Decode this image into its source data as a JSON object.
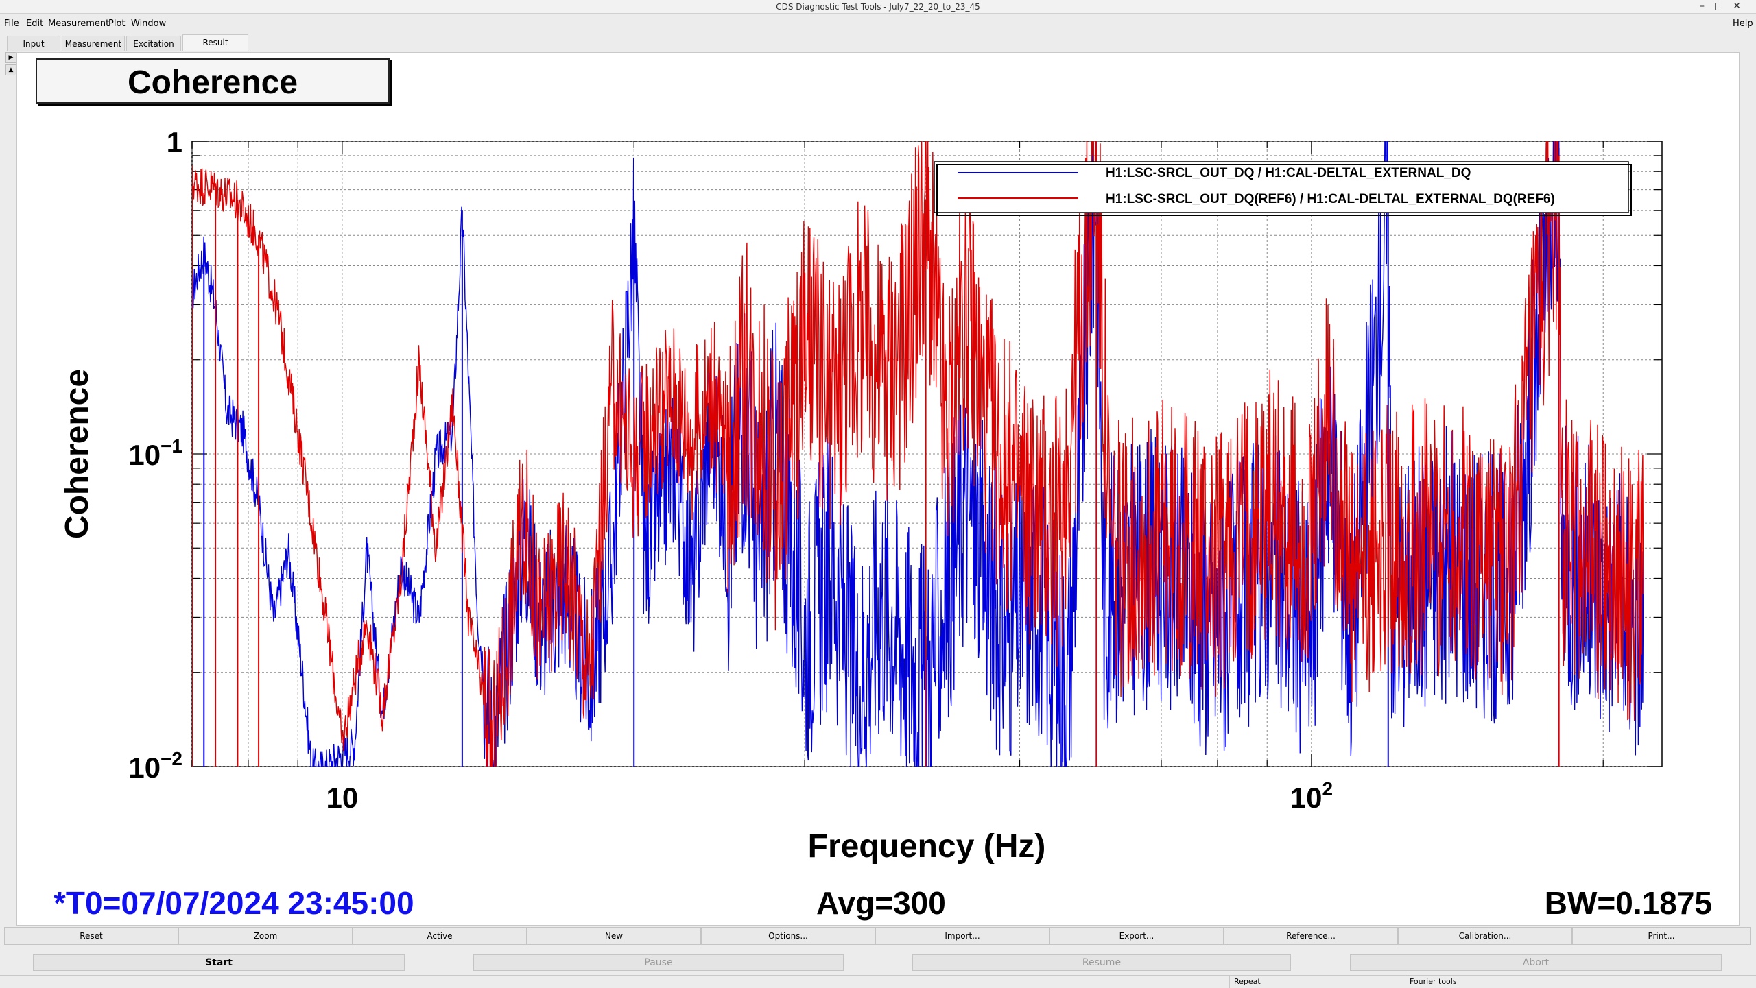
{
  "window": {
    "title": "CDS Diagnostic Test Tools - July7_22_20_to_23_45",
    "controls": [
      "–",
      "□",
      "✕"
    ]
  },
  "menu": {
    "items": [
      "File",
      "Edit",
      "Measurement",
      "Plot",
      "Window"
    ],
    "help": "Help"
  },
  "tabs": [
    "Input",
    "Measurement",
    "Excitation",
    "Result"
  ],
  "active_tab": "Result",
  "plot": {
    "title": "Coherence"
  },
  "chart_data": {
    "type": "line",
    "title": "Coherence",
    "xlabel": "Frequency (Hz)",
    "ylabel": "Coherence",
    "x_scale": "log",
    "y_scale": "log",
    "xlim": [
      7,
      230
    ],
    "ylim": [
      0.01,
      1
    ],
    "x_ticks": [
      {
        "value": 10,
        "label": "10",
        "sup": ""
      },
      {
        "value": 100,
        "label": "10",
        "sup": "2"
      }
    ],
    "y_ticks": [
      {
        "value": 1,
        "label": "1",
        "sup": ""
      },
      {
        "value": 0.1,
        "label": "10",
        "sup": "−1"
      },
      {
        "value": 0.01,
        "label": "10",
        "sup": "−2"
      }
    ],
    "grid": true,
    "legend_position": "top-right",
    "series": [
      {
        "name": "H1:LSC-SRCL_OUT_DQ / H1:CAL-DELTAL_EXTERNAL_DQ",
        "color": "#0000dd",
        "points": [
          [
            7.0,
            0.33
          ],
          [
            7.2,
            0.45
          ],
          [
            7.4,
            0.3
          ],
          [
            7.6,
            0.14
          ],
          [
            7.9,
            0.12
          ],
          [
            8.2,
            0.07
          ],
          [
            8.5,
            0.03
          ],
          [
            8.8,
            0.05
          ],
          [
            9.1,
            0.02
          ],
          [
            9.3,
            0.01
          ],
          [
            9.6,
            0.01
          ],
          [
            10.3,
            0.012
          ],
          [
            10.6,
            0.05
          ],
          [
            11.0,
            0.015
          ],
          [
            11.5,
            0.045
          ],
          [
            12.0,
            0.03
          ],
          [
            12.5,
            0.1
          ],
          [
            13.0,
            0.12
          ],
          [
            13.3,
            0.6
          ],
          [
            13.8,
            0.03
          ],
          [
            14.3,
            0.012
          ],
          [
            15.4,
            0.06
          ],
          [
            16.0,
            0.03
          ],
          [
            17.0,
            0.04
          ],
          [
            18.0,
            0.02
          ],
          [
            19.0,
            0.05
          ],
          [
            20.0,
            0.55
          ],
          [
            20.5,
            0.05
          ],
          [
            22.0,
            0.1
          ],
          [
            23.0,
            0.04
          ],
          [
            24.0,
            0.14
          ],
          [
            25.0,
            0.06
          ],
          [
            26.0,
            0.16
          ],
          [
            27.0,
            0.05
          ],
          [
            28.0,
            0.12
          ],
          [
            30.0,
            0.03
          ],
          [
            32.0,
            0.05
          ],
          [
            34.0,
            0.02
          ],
          [
            36.0,
            0.04
          ],
          [
            40.0,
            0.02
          ],
          [
            44.0,
            0.08
          ],
          [
            48.0,
            0.03
          ],
          [
            52.0,
            0.04
          ],
          [
            56.0,
            0.02
          ],
          [
            60.0,
            1.0
          ],
          [
            61.0,
            0.04
          ],
          [
            70.0,
            0.05
          ],
          [
            80.0,
            0.03
          ],
          [
            90.0,
            0.05
          ],
          [
            100.0,
            0.03
          ],
          [
            104.0,
            0.12
          ],
          [
            110.0,
            0.03
          ],
          [
            120.0,
            0.7
          ],
          [
            121.0,
            0.04
          ],
          [
            140.0,
            0.05
          ],
          [
            160.0,
            0.04
          ],
          [
            180.0,
            0.95
          ],
          [
            181.0,
            0.05
          ],
          [
            200.0,
            0.04
          ],
          [
            220.0,
            0.03
          ]
        ]
      },
      {
        "name": "H1:LSC-SRCL_OUT_DQ(REF6) / H1:CAL-DELTAL_EXTERNAL_DQ(REF6)",
        "color": "#dd0000",
        "points": [
          [
            7.0,
            0.75
          ],
          [
            7.4,
            0.72
          ],
          [
            7.8,
            0.65
          ],
          [
            8.2,
            0.5
          ],
          [
            8.6,
            0.28
          ],
          [
            9.0,
            0.12
          ],
          [
            9.4,
            0.05
          ],
          [
            9.7,
            0.025
          ],
          [
            10.0,
            0.012
          ],
          [
            10.6,
            0.03
          ],
          [
            11.0,
            0.015
          ],
          [
            11.5,
            0.04
          ],
          [
            12.0,
            0.2
          ],
          [
            12.5,
            0.05
          ],
          [
            13.0,
            0.15
          ],
          [
            13.5,
            0.03
          ],
          [
            14.3,
            0.012
          ],
          [
            15.4,
            0.07
          ],
          [
            16.0,
            0.03
          ],
          [
            17.0,
            0.05
          ],
          [
            18.0,
            0.02
          ],
          [
            19.0,
            0.18
          ],
          [
            20.0,
            0.1
          ],
          [
            21.0,
            0.14
          ],
          [
            22.0,
            0.16
          ],
          [
            23.0,
            0.12
          ],
          [
            24.0,
            0.17
          ],
          [
            25.0,
            0.1
          ],
          [
            26.0,
            0.2
          ],
          [
            27.0,
            0.15
          ],
          [
            28.0,
            0.08
          ],
          [
            30.0,
            0.25
          ],
          [
            32.0,
            0.15
          ],
          [
            34.0,
            0.28
          ],
          [
            36.0,
            0.2
          ],
          [
            38.0,
            0.25
          ],
          [
            40.0,
            0.65
          ],
          [
            42.0,
            0.12
          ],
          [
            44.0,
            0.35
          ],
          [
            46.0,
            0.15
          ],
          [
            48.0,
            0.1
          ],
          [
            50.0,
            0.08
          ],
          [
            55.0,
            0.06
          ],
          [
            60.0,
            0.95
          ],
          [
            62.0,
            0.05
          ],
          [
            70.0,
            0.06
          ],
          [
            80.0,
            0.05
          ],
          [
            90.0,
            0.08
          ],
          [
            100.0,
            0.05
          ],
          [
            104.0,
            0.15
          ],
          [
            110.0,
            0.04
          ],
          [
            120.0,
            0.06
          ],
          [
            140.0,
            0.06
          ],
          [
            160.0,
            0.05
          ],
          [
            180.0,
            0.9
          ],
          [
            182.0,
            0.06
          ],
          [
            200.0,
            0.05
          ],
          [
            220.0,
            0.04
          ]
        ]
      }
    ]
  },
  "stats": {
    "t0": "*T0=07/07/2024 23:45:00",
    "avg": "Avg=300",
    "bw": "BW=0.1875"
  },
  "toolbar": [
    "Reset",
    "Zoom",
    "Active",
    "New",
    "Options...",
    "Import...",
    "Export...",
    "Reference...",
    "Calibration...",
    "Print..."
  ],
  "run_controls": [
    {
      "label": "Start",
      "enabled": true
    },
    {
      "label": "Pause",
      "enabled": false
    },
    {
      "label": "Resume",
      "enabled": false
    },
    {
      "label": "Abort",
      "enabled": false
    }
  ],
  "status": {
    "repeat": "Repeat",
    "mode": "Fourier tools"
  }
}
